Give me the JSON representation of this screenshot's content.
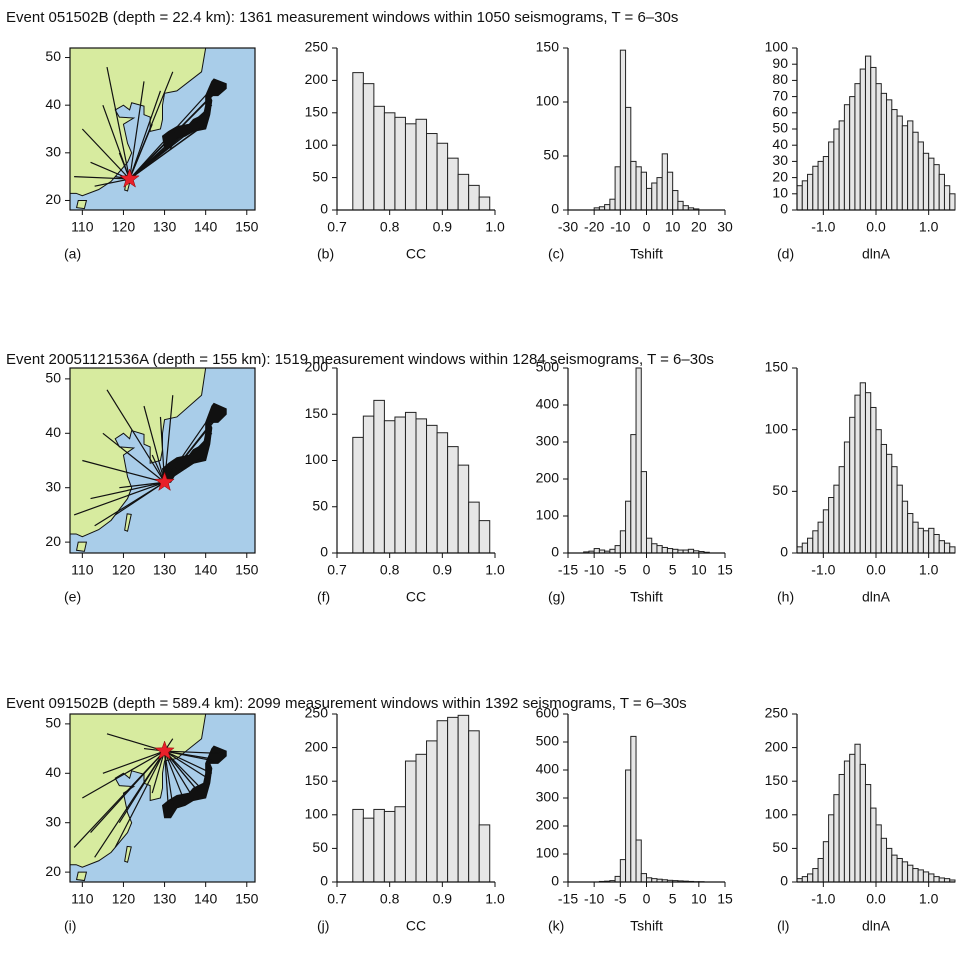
{
  "chart_data": [
    {
      "type": "map",
      "title": "Event 051502B (depth = 22.4 km): 1361 measurement windows within 1050 seismograms, T = 6–30s",
      "label": "(a)",
      "xlim": [
        107,
        152
      ],
      "ylim": [
        18,
        52
      ],
      "xticks": [
        110,
        120,
        130,
        140,
        150
      ],
      "yticks": [
        20,
        30,
        40,
        50
      ],
      "x": [
        121.5
      ],
      "y": [
        24.5
      ],
      "color": "#e8202a"
    },
    {
      "type": "histogram",
      "label": "(b)",
      "xlabel": "CC",
      "bins": [
        0.73,
        0.75,
        0.77,
        0.79,
        0.81,
        0.83,
        0.85,
        0.87,
        0.89,
        0.91,
        0.93,
        0.95,
        0.97,
        0.99
      ],
      "values": [
        212,
        195,
        160,
        150,
        143,
        133,
        140,
        118,
        103,
        80,
        55,
        38,
        20
      ],
      "xlim": [
        0.7,
        1.0
      ],
      "ylim": [
        0,
        250
      ],
      "xticks": [
        0.7,
        0.8,
        0.9,
        {
          "value": 1,
          "label": "1.0"
        }
      ],
      "yticks": [
        0,
        50,
        100,
        150,
        200,
        250
      ],
      "color": "#e6e6e6"
    },
    {
      "type": "histogram",
      "label": "(c)",
      "xlabel": "Tshift",
      "bins": [
        -20,
        -18,
        -16,
        -14,
        -12,
        -10,
        -8,
        -6,
        -4,
        -2,
        0,
        2,
        4,
        6,
        8,
        10,
        12,
        14,
        16,
        18,
        20
      ],
      "values": [
        2,
        3,
        5,
        10,
        40,
        148,
        95,
        45,
        40,
        35,
        20,
        25,
        30,
        52,
        35,
        18,
        8,
        4,
        2,
        1
      ],
      "xlim": [
        -30,
        30
      ],
      "ylim": [
        0,
        150
      ],
      "xticks": [
        -30,
        -20,
        -10,
        0,
        10,
        20,
        30
      ],
      "yticks": [
        0,
        50,
        100,
        150
      ],
      "color": "#e6e6e6"
    },
    {
      "type": "histogram",
      "label": "(d)",
      "xlabel": "dlnA",
      "bins": [
        -1.5,
        -1.4,
        -1.3,
        -1.2,
        -1.1,
        -1.0,
        -0.9,
        -0.8,
        -0.7,
        -0.6,
        -0.5,
        -0.4,
        -0.3,
        -0.2,
        -0.1,
        0.0,
        0.1,
        0.2,
        0.3,
        0.4,
        0.5,
        0.6,
        0.7,
        0.8,
        0.9,
        1.0,
        1.1,
        1.2,
        1.3,
        1.4,
        1.5
      ],
      "values": [
        15,
        18,
        22,
        27,
        30,
        33,
        42,
        50,
        55,
        65,
        70,
        78,
        87,
        95,
        88,
        78,
        72,
        68,
        62,
        58,
        52,
        55,
        48,
        42,
        35,
        32,
        28,
        22,
        15,
        10
      ],
      "xlim": [
        -1.5,
        1.5
      ],
      "ylim": [
        0,
        100
      ],
      "xticks": [
        {
          "value": -1,
          "label": "-1.0"
        },
        {
          "value": 0,
          "label": "0.0"
        },
        {
          "value": 1,
          "label": "1.0"
        }
      ],
      "yticks": [
        0,
        10,
        20,
        30,
        40,
        50,
        60,
        70,
        80,
        90,
        100
      ],
      "color": "#e6e6e6"
    },
    {
      "type": "map",
      "title": "Event 20051121536A (depth = 155 km): 1519 measurement windows within 1284 seismograms, T = 6–30s",
      "label": "(e)",
      "xlim": [
        107,
        152
      ],
      "ylim": [
        18,
        52
      ],
      "xticks": [
        110,
        120,
        130,
        140,
        150
      ],
      "yticks": [
        20,
        30,
        40,
        50
      ],
      "x": [
        130
      ],
      "y": [
        31
      ],
      "color": "#e8202a"
    },
    {
      "type": "histogram",
      "label": "(f)",
      "xlabel": "CC",
      "bins": [
        0.73,
        0.75,
        0.77,
        0.79,
        0.81,
        0.83,
        0.85,
        0.87,
        0.89,
        0.91,
        0.93,
        0.95,
        0.97,
        0.99
      ],
      "values": [
        125,
        148,
        165,
        143,
        147,
        152,
        145,
        138,
        130,
        115,
        95,
        55,
        35
      ],
      "xlim": [
        0.7,
        1.0
      ],
      "ylim": [
        0,
        200
      ],
      "xticks": [
        0.7,
        0.8,
        0.9,
        {
          "value": 1,
          "label": "1.0"
        }
      ],
      "yticks": [
        0,
        50,
        100,
        150,
        200
      ],
      "color": "#e6e6e6"
    },
    {
      "type": "histogram",
      "label": "(g)",
      "xlabel": "Tshift",
      "bins": [
        -12,
        -11,
        -10,
        -9,
        -8,
        -7,
        -6,
        -5,
        -4,
        -3,
        -2,
        -1,
        0,
        1,
        2,
        3,
        4,
        5,
        6,
        7,
        8,
        9,
        10,
        11,
        12
      ],
      "values": [
        3,
        5,
        12,
        8,
        5,
        10,
        20,
        60,
        140,
        320,
        500,
        220,
        40,
        25,
        20,
        15,
        12,
        10,
        8,
        8,
        10,
        6,
        4,
        2
      ],
      "xlim": [
        -15,
        15
      ],
      "ylim": [
        0,
        500
      ],
      "xticks": [
        -15,
        -10,
        -5,
        0,
        5,
        10,
        15
      ],
      "yticks": [
        0,
        100,
        200,
        300,
        400,
        500
      ],
      "color": "#e6e6e6"
    },
    {
      "type": "histogram",
      "label": "(h)",
      "xlabel": "dlnA",
      "bins": [
        -1.5,
        -1.4,
        -1.3,
        -1.2,
        -1.1,
        -1.0,
        -0.9,
        -0.8,
        -0.7,
        -0.6,
        -0.5,
        -0.4,
        -0.3,
        -0.2,
        -0.1,
        0.0,
        0.1,
        0.2,
        0.3,
        0.4,
        0.5,
        0.6,
        0.7,
        0.8,
        0.9,
        1.0,
        1.1,
        1.2,
        1.3,
        1.4,
        1.5
      ],
      "values": [
        5,
        8,
        12,
        18,
        25,
        35,
        45,
        55,
        70,
        90,
        110,
        128,
        138,
        130,
        118,
        100,
        88,
        80,
        70,
        55,
        42,
        32,
        25,
        20,
        18,
        20,
        15,
        10,
        8,
        5
      ],
      "xlim": [
        -1.5,
        1.5
      ],
      "ylim": [
        0,
        150
      ],
      "xticks": [
        {
          "value": -1,
          "label": "-1.0"
        },
        {
          "value": 0,
          "label": "0.0"
        },
        {
          "value": 1,
          "label": "1.0"
        }
      ],
      "yticks": [
        0,
        50,
        100,
        150
      ],
      "color": "#e6e6e6"
    },
    {
      "type": "map",
      "title": "Event 091502B (depth = 589.4 km): 2099 measurement windows within 1392 seismograms, T = 6–30s",
      "label": "(i)",
      "xlim": [
        107,
        152
      ],
      "ylim": [
        18,
        52
      ],
      "xticks": [
        110,
        120,
        130,
        140,
        150
      ],
      "yticks": [
        20,
        30,
        40,
        50
      ],
      "x": [
        130
      ],
      "y": [
        44.5
      ],
      "color": "#e8202a"
    },
    {
      "type": "histogram",
      "label": "(j)",
      "xlabel": "CC",
      "bins": [
        0.73,
        0.75,
        0.77,
        0.79,
        0.81,
        0.83,
        0.85,
        0.87,
        0.89,
        0.91,
        0.93,
        0.95,
        0.97,
        0.99
      ],
      "values": [
        108,
        95,
        108,
        105,
        112,
        180,
        190,
        210,
        240,
        245,
        248,
        225,
        85
      ],
      "xlim": [
        0.7,
        1.0
      ],
      "ylim": [
        0,
        250
      ],
      "xticks": [
        0.7,
        0.8,
        0.9,
        {
          "value": 1,
          "label": "1.0"
        }
      ],
      "yticks": [
        0,
        50,
        100,
        150,
        200,
        250
      ],
      "color": "#e6e6e6"
    },
    {
      "type": "histogram",
      "label": "(k)",
      "xlabel": "Tshift",
      "bins": [
        -12,
        -11,
        -10,
        -9,
        -8,
        -7,
        -6,
        -5,
        -4,
        -3,
        -2,
        -1,
        0,
        1,
        2,
        3,
        4,
        5,
        6,
        7,
        8,
        9,
        10,
        11,
        12
      ],
      "values": [
        0,
        0,
        0,
        2,
        3,
        5,
        20,
        80,
        400,
        520,
        150,
        30,
        15,
        12,
        10,
        8,
        6,
        5,
        4,
        3,
        2,
        1,
        1,
        0
      ],
      "xlim": [
        -15,
        15
      ],
      "ylim": [
        0,
        600
      ],
      "xticks": [
        -15,
        -10,
        -5,
        0,
        5,
        10,
        15
      ],
      "yticks": [
        0,
        100,
        200,
        300,
        400,
        500,
        600
      ],
      "color": "#e6e6e6"
    },
    {
      "type": "histogram",
      "label": "(l)",
      "xlabel": "dlnA",
      "bins": [
        -1.5,
        -1.4,
        -1.3,
        -1.2,
        -1.1,
        -1.0,
        -0.9,
        -0.8,
        -0.7,
        -0.6,
        -0.5,
        -0.4,
        -0.3,
        -0.2,
        -0.1,
        0.0,
        0.1,
        0.2,
        0.3,
        0.4,
        0.5,
        0.6,
        0.7,
        0.8,
        0.9,
        1.0,
        1.1,
        1.2,
        1.3,
        1.4,
        1.5
      ],
      "values": [
        5,
        8,
        12,
        20,
        35,
        60,
        100,
        130,
        160,
        180,
        190,
        205,
        175,
        145,
        110,
        85,
        65,
        50,
        40,
        35,
        30,
        25,
        20,
        18,
        15,
        12,
        8,
        6,
        5,
        3
      ],
      "xlim": [
        -1.5,
        1.5
      ],
      "ylim": [
        0,
        250
      ],
      "xticks": [
        {
          "value": -1,
          "label": "-1.0"
        },
        {
          "value": 0,
          "label": "0.0"
        },
        {
          "value": 1,
          "label": "1.0"
        }
      ],
      "yticks": [
        0,
        50,
        100,
        150,
        200,
        250
      ],
      "color": "#e6e6e6"
    }
  ]
}
